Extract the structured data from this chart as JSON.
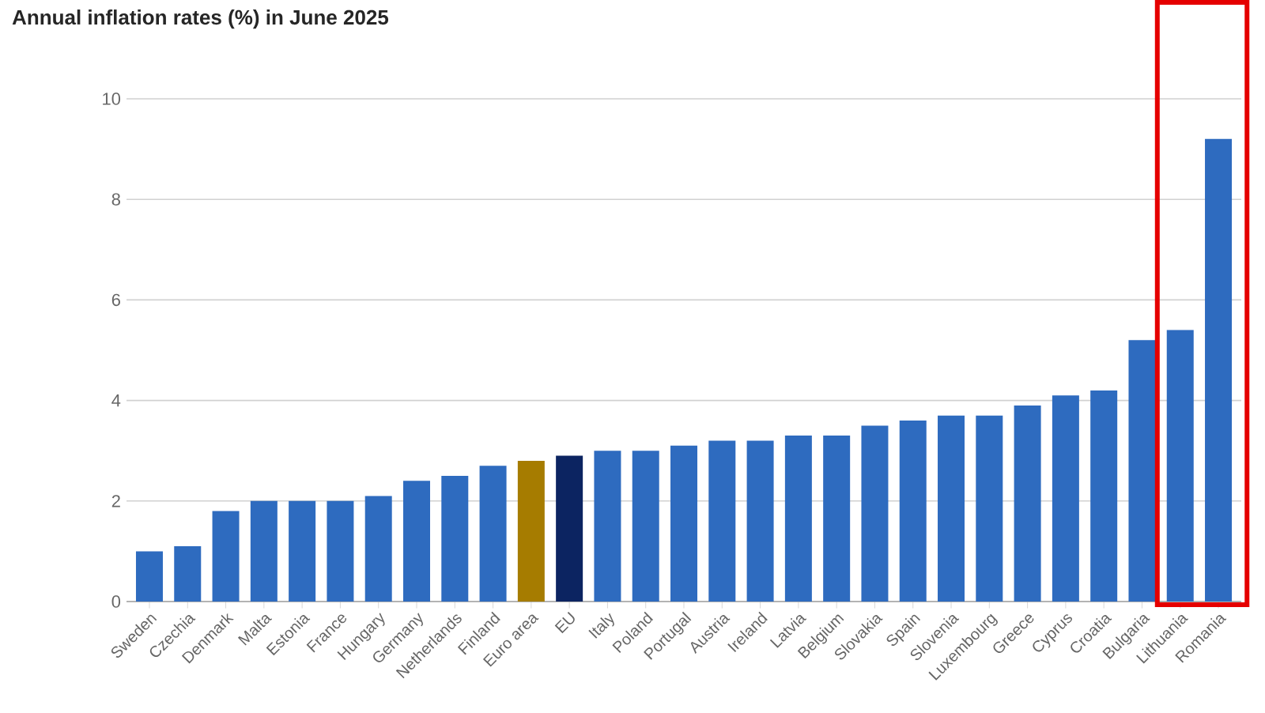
{
  "chart_data": {
    "type": "bar",
    "title": "Annual inflation rates (%) in June 2025",
    "categories": [
      "Sweden",
      "Czechia",
      "Denmark",
      "Malta",
      "Estonia",
      "France",
      "Hungary",
      "Germany",
      "Netherlands",
      "Finland",
      "Euro area",
      "EU",
      "Italy",
      "Poland",
      "Portugal",
      "Austria",
      "Ireland",
      "Latvia",
      "Belgium",
      "Slovakia",
      "Spain",
      "Slovenia",
      "Luxembourg",
      "Greece",
      "Cyprus",
      "Croatia",
      "Bulgaria",
      "Lithuania",
      "Romania"
    ],
    "values": [
      1.0,
      1.1,
      1.8,
      2.0,
      2.0,
      2.0,
      2.1,
      2.4,
      2.5,
      2.7,
      2.8,
      2.9,
      3.0,
      3.0,
      3.1,
      3.2,
      3.2,
      3.3,
      3.3,
      3.5,
      3.6,
      3.7,
      3.7,
      3.9,
      4.1,
      4.2,
      5.2,
      5.4,
      9.2
    ],
    "colors": [
      "#2e6bbf",
      "#2e6bbf",
      "#2e6bbf",
      "#2e6bbf",
      "#2e6bbf",
      "#2e6bbf",
      "#2e6bbf",
      "#2e6bbf",
      "#2e6bbf",
      "#2e6bbf",
      "#a67c00",
      "#0c2461",
      "#2e6bbf",
      "#2e6bbf",
      "#2e6bbf",
      "#2e6bbf",
      "#2e6bbf",
      "#2e6bbf",
      "#2e6bbf",
      "#2e6bbf",
      "#2e6bbf",
      "#2e6bbf",
      "#2e6bbf",
      "#2e6bbf",
      "#2e6bbf",
      "#2e6bbf",
      "#2e6bbf",
      "#2e6bbf",
      "#2e6bbf"
    ],
    "ylim": [
      0,
      10
    ],
    "yticks": [
      0,
      2,
      4,
      6,
      8,
      10
    ],
    "grid": "y"
  }
}
